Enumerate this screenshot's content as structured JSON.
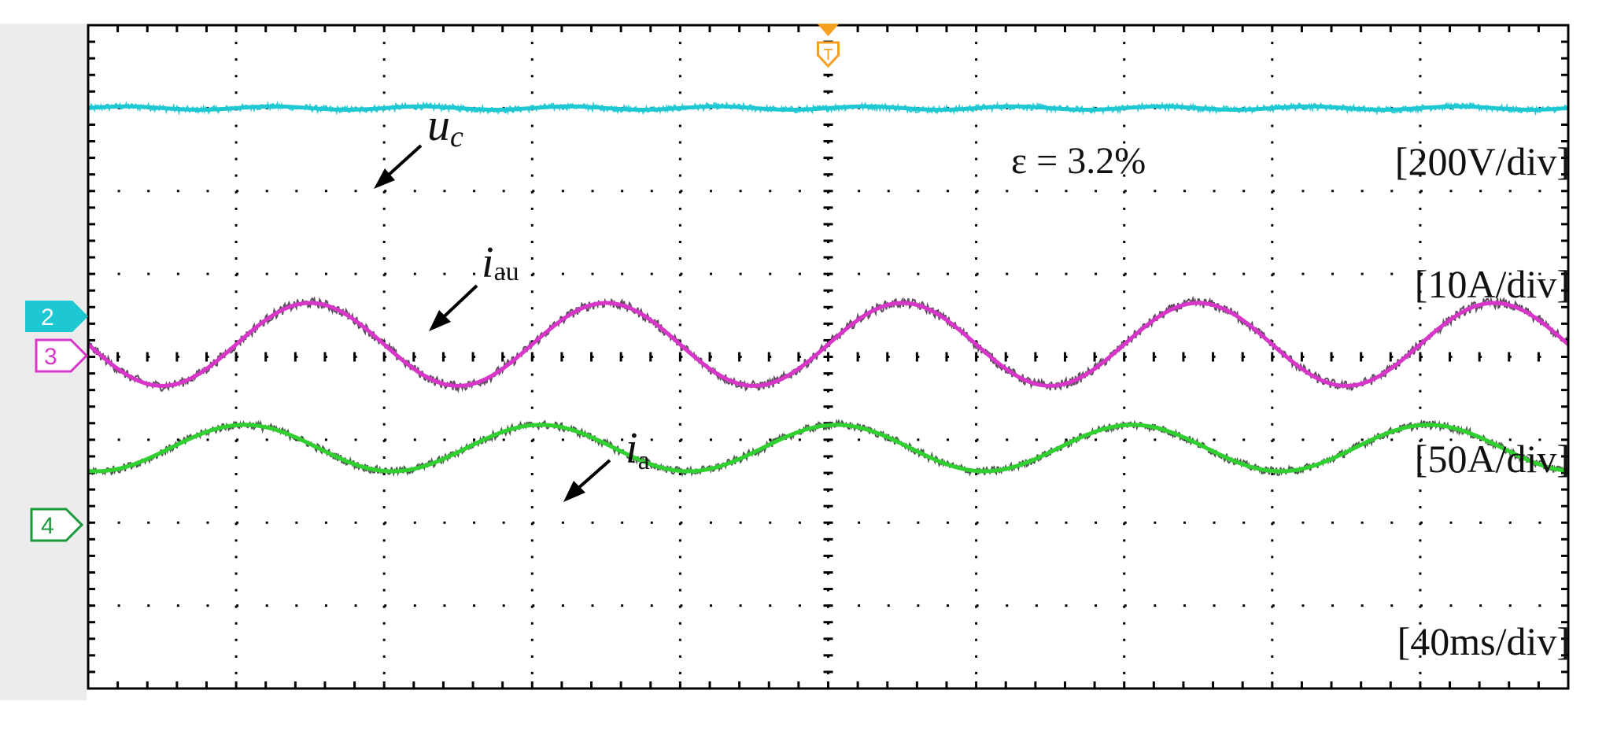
{
  "colors": {
    "background": "#ffffff",
    "left_strip": "#ececec",
    "frame": "#000000",
    "grid_dots": "#000000",
    "uc": "#1ec8d2",
    "iau": "#d836c8",
    "iau_noise": "#2a0f2a",
    "ia": "#2fd02f",
    "ia_noise": "#0d2a0d",
    "trigger": "#f5a020",
    "marker2": "#1ec8d2",
    "marker3": "#d836c8",
    "marker4": "#1a9a3a"
  },
  "channel_markers": [
    {
      "id": "2",
      "label": "2",
      "style": "filled",
      "color": "#1ec8d2"
    },
    {
      "id": "3",
      "label": "3",
      "style": "outline",
      "color": "#d836c8"
    },
    {
      "id": "4",
      "label": "4",
      "style": "outline",
      "color": "#1a9a3a"
    }
  ],
  "scale_labels": {
    "uc": "[200V/div]",
    "iau": "[10A/div]",
    "ia": "[50A/div]",
    "time": "[40ms/div]"
  },
  "annotations": {
    "uc": {
      "main": "u",
      "sub": "c"
    },
    "iau": {
      "main": "i",
      "sub": "au"
    },
    "ia": {
      "main": "i",
      "sub": "a"
    },
    "epsilon": "ε = 3.2%"
  },
  "chart_data": {
    "type": "line",
    "title": "",
    "xlabel": "",
    "ylabel": "",
    "grid": true,
    "x_divisions": 10,
    "y_divisions": 8,
    "time_per_div_ms": 40,
    "xlim_ms": [
      0,
      400
    ],
    "series": [
      {
        "name": "u_c",
        "channel": "2",
        "scale": "200V/div",
        "kind": "dc",
        "dc_level_div": 3.0,
        "ripple_div": 0.02,
        "noise_div": 0.04,
        "color": "#1ec8d2",
        "ripple_ratio": "ε = 3.2%"
      },
      {
        "name": "i_au",
        "channel": "3",
        "scale": "10A/div",
        "kind": "sine",
        "offset_div": 0.15,
        "amplitude_div": 0.5,
        "period_ms": 80,
        "phase_deg": 180,
        "noise_div": 0.06,
        "color": "#d836c8"
      },
      {
        "name": "i_a",
        "channel": "4",
        "scale": "50A/div",
        "kind": "sine",
        "offset_div": -1.1,
        "amplitude_div": 0.28,
        "period_ms": 80,
        "phase_deg": -100,
        "noise_div": 0.05,
        "color": "#2fd02f"
      }
    ]
  }
}
